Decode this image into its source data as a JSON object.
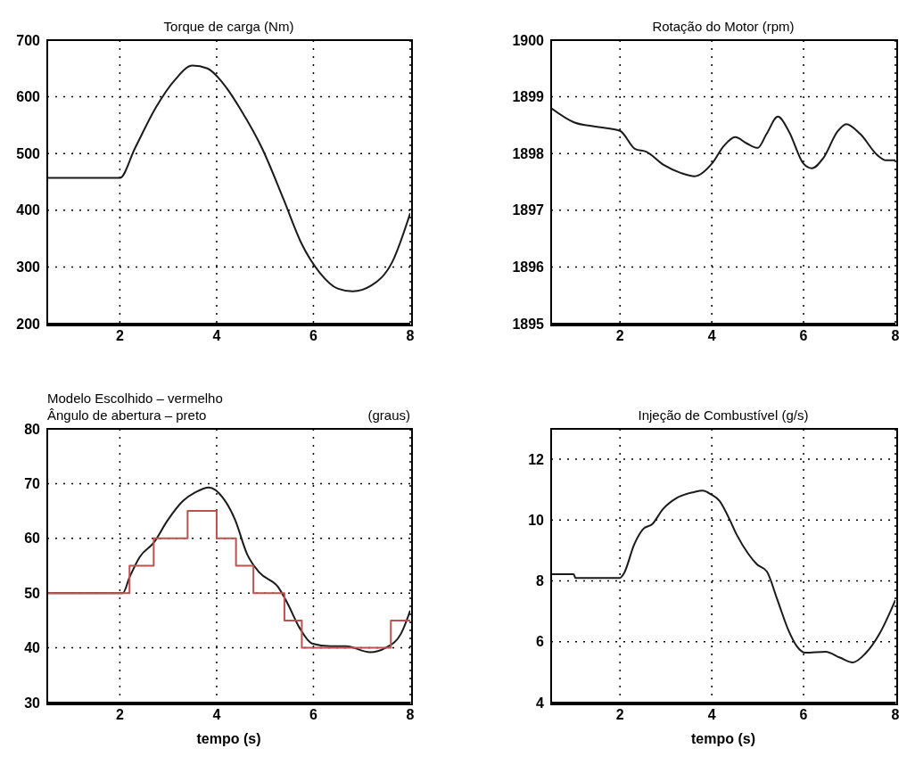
{
  "chart_data": [
    {
      "type": "line",
      "title": "Torque de carga (Nm)",
      "xlim": [
        0.5,
        8
      ],
      "xticks": [
        2,
        4,
        6,
        8
      ],
      "ylim": [
        200,
        700
      ],
      "yticks": [
        200,
        300,
        400,
        500,
        600,
        700
      ],
      "grid": true,
      "series": [
        {
          "color": "#1a1a1a",
          "x": [
            0.5,
            2,
            2.31,
            2.75,
            3.13,
            3.5,
            3.81,
            4.13,
            4.5,
            4.94,
            5.38,
            5.75,
            6.13,
            6.5,
            6.81,
            7.19,
            7.63,
            8
          ],
          "values": [
            457,
            457,
            509,
            582,
            629,
            655,
            650,
            624,
            577,
            509,
            420,
            342,
            290,
            262,
            257,
            267,
            309,
            395
          ]
        }
      ]
    },
    {
      "type": "line",
      "title": "Rotação do Motor (rpm)",
      "xlim": [
        0.5,
        8
      ],
      "xticks": [
        2,
        4,
        6,
        8
      ],
      "ylim": [
        1895,
        1900
      ],
      "yticks": [
        1895,
        1896,
        1897,
        1898,
        1899,
        1900
      ],
      "grid": true,
      "series": [
        {
          "color": "#1a1a1a",
          "x": [
            0.5,
            1.0,
            1.5,
            2,
            2.33,
            2.58,
            2.95,
            3.32,
            3.63,
            4,
            4.26,
            4.51,
            4.76,
            5,
            5.19,
            5.44,
            5.68,
            6,
            6.18,
            6.43,
            6.74,
            6.93,
            7.24,
            7.61,
            7.8,
            8
          ],
          "values": [
            1898.8,
            1898.55,
            1898.47,
            1898.4,
            1898.08,
            1898.03,
            1897.8,
            1897.66,
            1897.6,
            1897.82,
            1898.13,
            1898.29,
            1898.18,
            1898.1,
            1898.34,
            1898.65,
            1898.39,
            1897.82,
            1897.74,
            1897.92,
            1898.39,
            1898.52,
            1898.34,
            1897.97,
            1897.88,
            1897.88
          ]
        }
      ]
    },
    {
      "type": "line",
      "title": "Modelo Escolhido – vermelho\nÂngulo de abertura – preto",
      "ylabel": "(graus)",
      "xlabel": "tempo (s)",
      "xlim": [
        0.5,
        8
      ],
      "xticks": [
        2,
        4,
        6,
        8
      ],
      "ylim": [
        30,
        80
      ],
      "yticks": [
        30,
        40,
        50,
        60,
        70,
        80
      ],
      "grid": true,
      "series": [
        {
          "color": "#1a1a1a",
          "x": [
            0.5,
            2.06,
            2.2,
            2.41,
            2.7,
            2.98,
            3.3,
            3.56,
            3.84,
            4.13,
            4.38,
            4.63,
            4.89,
            5.27,
            5.46,
            5.71,
            5.97,
            6.35,
            6.67,
            7.17,
            7.49,
            7.81,
            8
          ],
          "values": [
            50,
            50,
            52.9,
            56.6,
            59.2,
            63.2,
            66.8,
            68.4,
            69.3,
            67.4,
            63.4,
            57.1,
            53.7,
            51.1,
            48.2,
            43.7,
            40.8,
            40.3,
            40.3,
            39.2,
            40,
            42.6,
            46.8
          ]
        },
        {
          "type": "step",
          "color": "#c0504d",
          "x": [
            0.5,
            2.2,
            2.7,
            3.4,
            4,
            4.4,
            4.76,
            5.4,
            5.76,
            7.6,
            8
          ],
          "values": [
            50,
            55,
            60,
            65,
            60,
            55,
            50,
            45,
            40,
            45,
            45
          ]
        }
      ]
    },
    {
      "type": "line",
      "title": "Injeção de Combustível (g/s)",
      "xlabel": "tempo (s)",
      "xlim": [
        0.5,
        8
      ],
      "xticks": [
        2,
        4,
        6,
        8
      ],
      "ylim": [
        4,
        13
      ],
      "yticks": [
        4,
        6,
        8,
        10,
        12
      ],
      "grid": true,
      "series": [
        {
          "color": "#1a1a1a",
          "x": [
            0.5,
            0.99,
            1.03,
            2,
            2.09,
            2.31,
            2.5,
            2.71,
            2.93,
            3.24,
            3.61,
            3.8,
            3.99,
            4.17,
            4.36,
            4.55,
            4.8,
            4.98,
            5.2,
            5.42,
            5.67,
            5.85,
            6.04,
            6.48,
            6.79,
            7.07,
            7.35,
            7.66,
            8
          ],
          "values": [
            8.22,
            8.22,
            8.1,
            8.1,
            8.26,
            9.2,
            9.7,
            9.88,
            10.35,
            10.73,
            10.92,
            10.97,
            10.84,
            10.63,
            10.11,
            9.5,
            8.88,
            8.55,
            8.31,
            7.42,
            6.38,
            5.86,
            5.64,
            5.67,
            5.48,
            5.32,
            5.62,
            6.28,
            7.37
          ]
        }
      ]
    }
  ]
}
